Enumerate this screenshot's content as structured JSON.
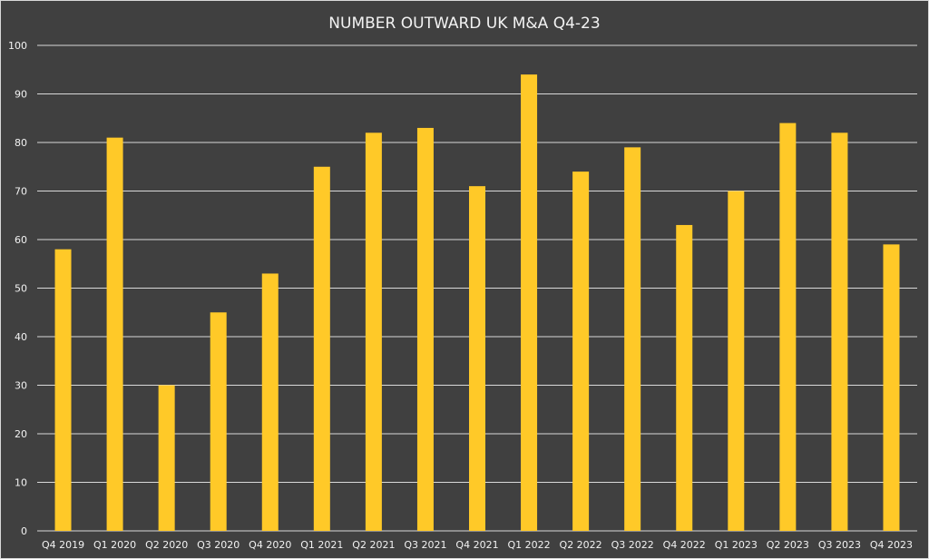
{
  "chart_data": {
    "type": "bar",
    "title": "NUMBER OUTWARD UK M&A Q4-23",
    "xlabel": "",
    "ylabel": "",
    "categories": [
      "Q4 2019",
      "Q1 2020",
      "Q2 2020",
      "Q3 2020",
      "Q4 2020",
      "Q1 2021",
      "Q2 2021",
      "Q3 2021",
      "Q4 2021",
      "Q1 2022",
      "Q2 2022",
      "Q3 2022",
      "Q4 2022",
      "Q1 2023",
      "Q2 2023",
      "Q3 2023",
      "Q4 2023"
    ],
    "values": [
      58,
      81,
      30,
      45,
      53,
      75,
      82,
      83,
      71,
      94,
      74,
      79,
      63,
      70,
      84,
      82,
      59
    ],
    "ylim": [
      0,
      100
    ],
    "yticks": [
      0,
      10,
      20,
      30,
      40,
      50,
      60,
      70,
      80,
      90,
      100
    ],
    "grid": true,
    "legend": "none",
    "colors": {
      "background": "#404040",
      "bar": "#FFC928",
      "text": "#F2F2F2",
      "grid": "#D9D9D9"
    }
  }
}
